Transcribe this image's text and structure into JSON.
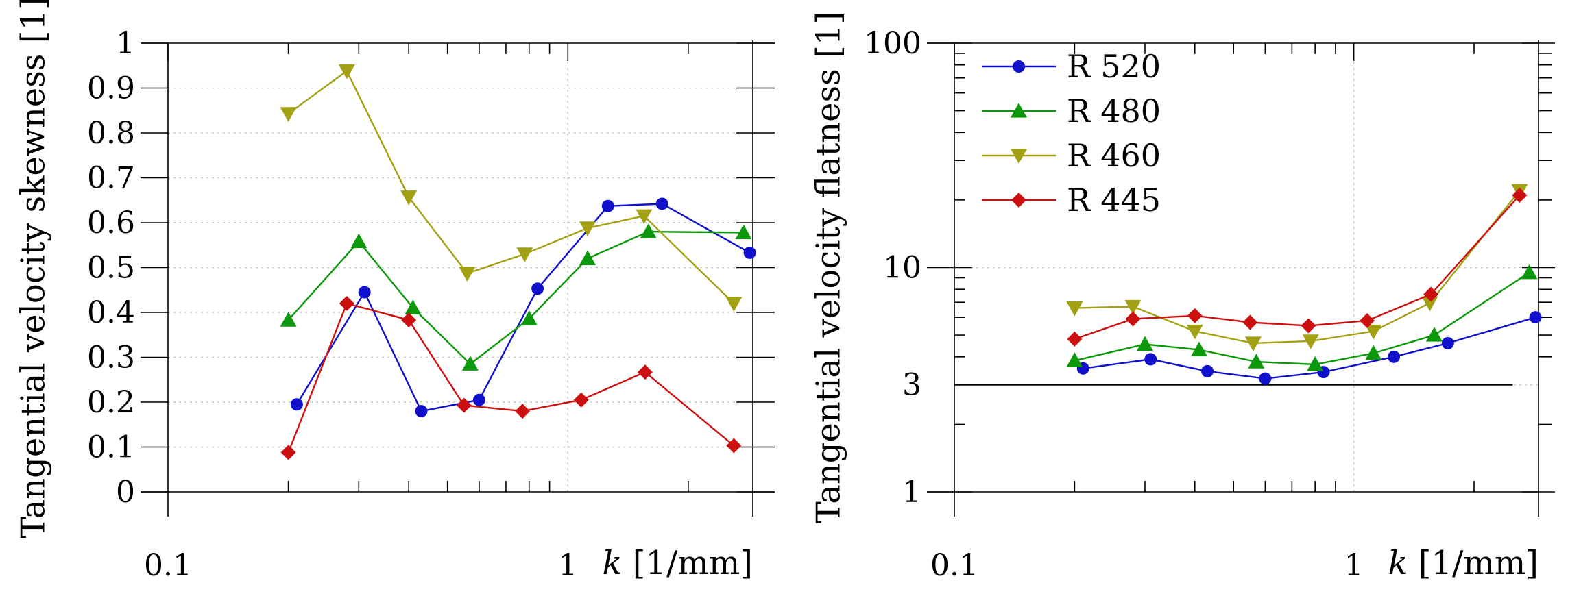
{
  "chart_data": [
    {
      "type": "line",
      "x_scale": "log",
      "y_scale": "linear",
      "xlim": [
        0.1,
        2.9
      ],
      "ylim": [
        0,
        1
      ],
      "xlabel_italic": "k",
      "xlabel_unit": "[1/mm]",
      "ylabel": "Tangential velocity skewness [1]",
      "xticks": [
        0.1,
        1
      ],
      "xtick_labels": [
        "0.1",
        "1"
      ],
      "yticks": [
        0,
        0.1,
        0.2,
        0.3,
        0.4,
        0.5,
        0.6,
        0.7,
        0.8,
        0.9,
        1
      ],
      "ytick_labels": [
        "0",
        "0.1",
        "0.2",
        "0.3",
        "0.4",
        "0.5",
        "0.6",
        "0.7",
        "0.8",
        "0.9",
        "1"
      ],
      "series": [
        {
          "name": "R 520",
          "color": "#1010cc",
          "marker": "circle",
          "x": [
            0.21,
            0.31,
            0.43,
            0.6,
            0.84,
            1.26,
            1.72,
            2.85
          ],
          "y": [
            0.195,
            0.445,
            0.18,
            0.205,
            0.453,
            0.637,
            0.642,
            0.533
          ]
        },
        {
          "name": "R 480",
          "color": "#0b990b",
          "marker": "triangle-up",
          "x": [
            0.2,
            0.3,
            0.41,
            0.57,
            0.8,
            1.12,
            1.59,
            2.75
          ],
          "y": [
            0.383,
            0.558,
            0.41,
            0.285,
            0.386,
            0.52,
            0.58,
            0.578
          ]
        },
        {
          "name": "R 460",
          "color": "#a3a014",
          "marker": "triangle-down",
          "x": [
            0.2,
            0.28,
            0.4,
            0.56,
            0.78,
            1.12,
            1.55,
            2.6
          ],
          "y": [
            0.843,
            0.938,
            0.657,
            0.487,
            0.53,
            0.588,
            0.615,
            0.42
          ]
        },
        {
          "name": "R 445",
          "color": "#cc1010",
          "marker": "diamond",
          "x": [
            0.2,
            0.28,
            0.4,
            0.55,
            0.77,
            1.08,
            1.56,
            2.6
          ],
          "y": [
            0.088,
            0.42,
            0.383,
            0.193,
            0.18,
            0.205,
            0.267,
            0.103
          ]
        }
      ]
    },
    {
      "type": "line",
      "x_scale": "log",
      "y_scale": "log",
      "xlim": [
        0.1,
        2.9
      ],
      "ylim": [
        1,
        100
      ],
      "xlabel_italic": "k",
      "xlabel_unit": "[1/mm]",
      "ylabel": "Tangential velocity flatness [1]",
      "xticks": [
        0.1,
        1
      ],
      "xtick_labels": [
        "0.1",
        "1"
      ],
      "yticks": [
        1,
        3,
        10,
        100
      ],
      "ytick_labels": [
        "1",
        "3",
        "10",
        "100"
      ],
      "reference_line": {
        "y": 3,
        "x_from": 0.1,
        "x_to": 2.5
      },
      "series": [
        {
          "name": "R 520",
          "color": "#1010cc",
          "marker": "circle",
          "x": [
            0.21,
            0.31,
            0.43,
            0.6,
            0.84,
            1.26,
            1.72,
            2.85
          ],
          "y": [
            3.55,
            3.9,
            3.45,
            3.2,
            3.42,
            4.0,
            4.6,
            6.0
          ]
        },
        {
          "name": "R 480",
          "color": "#0b990b",
          "marker": "triangle-up",
          "x": [
            0.2,
            0.3,
            0.41,
            0.57,
            0.8,
            1.12,
            1.59,
            2.75
          ],
          "y": [
            3.85,
            4.55,
            4.3,
            3.8,
            3.7,
            4.15,
            5.0,
            9.5
          ]
        },
        {
          "name": "R 460",
          "color": "#a3a014",
          "marker": "triangle-down",
          "x": [
            0.2,
            0.28,
            0.4,
            0.56,
            0.78,
            1.12,
            1.55,
            2.6
          ],
          "y": [
            6.6,
            6.7,
            5.2,
            4.6,
            4.7,
            5.2,
            6.95,
            22.0
          ]
        },
        {
          "name": "R 445",
          "color": "#cc1010",
          "marker": "diamond",
          "x": [
            0.2,
            0.28,
            0.4,
            0.55,
            0.77,
            1.08,
            1.56,
            2.6
          ],
          "y": [
            4.8,
            5.9,
            6.1,
            5.7,
            5.5,
            5.8,
            7.6,
            21.0
          ]
        }
      ]
    }
  ],
  "legend": [
    {
      "label": "R 520",
      "color": "#1010cc",
      "marker": "circle"
    },
    {
      "label": "R 480",
      "color": "#0b990b",
      "marker": "triangle-up"
    },
    {
      "label": "R 460",
      "color": "#a3a014",
      "marker": "triangle-down"
    },
    {
      "label": "R 445",
      "color": "#cc1010",
      "marker": "diamond"
    }
  ]
}
